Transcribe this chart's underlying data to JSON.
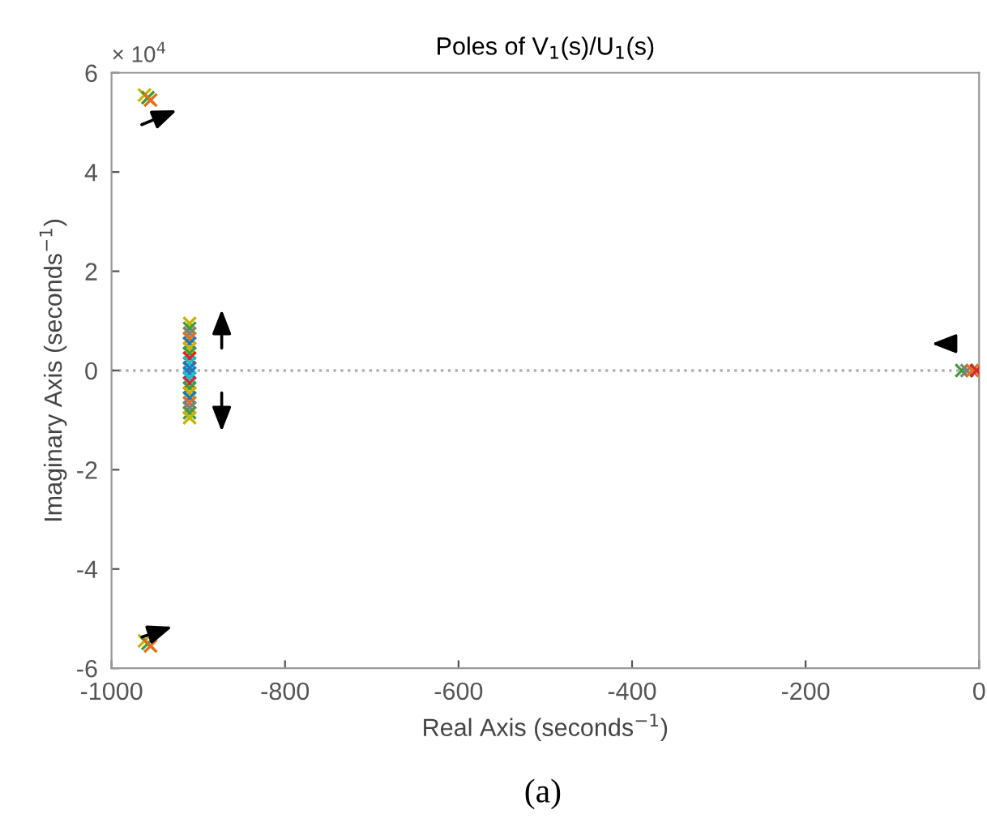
{
  "chart_data": {
    "type": "scatter",
    "title": "Poles of V$_{1}$(s)/U$_{1}$(s)",
    "xlabel": "Real Axis (seconds$^{−1}$)",
    "ylabel": "Imaginary Axis (seconds$^{−1}$)",
    "annotations": [
      "× 10$^{4}$",
      "(a)"
    ],
    "series": [
      {
        "x": [
          -962,
          -958,
          -955,
          -962,
          -958,
          -955,
          -910,
          -910,
          -910,
          -910,
          -910,
          -910,
          -910,
          -910,
          -910,
          -910,
          -910,
          -910,
          -910,
          -910,
          -910,
          -910,
          -910,
          -910,
          -910,
          -910,
          -20,
          -14,
          -8,
          -3
        ],
        "values": [
          5.55,
          5.5,
          5.45,
          -5.45,
          -5.5,
          -5.55,
          0.95,
          0.85,
          0.75,
          0.65,
          0.55,
          0.45,
          0.35,
          0.25,
          0.15,
          0.05,
          -0.05,
          -0.15,
          -0.25,
          -0.35,
          -0.45,
          -0.55,
          -0.65,
          -0.75,
          -0.85,
          -0.95,
          0,
          0,
          0,
          0
        ],
        "colors": [
          "#c8b400",
          "#3c9c3c",
          "#e07020",
          "#c8b400",
          "#3c9c3c",
          "#e07020",
          "#c8b400",
          "#3c9c3c",
          "#7f7f7f",
          "#e07020",
          "#1f77b4",
          "#c8b400",
          "#3c9c3c",
          "#d62728",
          "#17becf",
          "#1f77b4",
          "#1f77b4",
          "#17becf",
          "#d62728",
          "#3c9c3c",
          "#c8b400",
          "#1f77b4",
          "#e07020",
          "#7f7f7f",
          "#3c9c3c",
          "#c8b400",
          "#3c9c3c",
          "#7f7f7f",
          "#e07020",
          "#d62728"
        ]
      }
    ],
    "marker": "cross",
    "xlim": [
      -1000,
      0
    ],
    "xticks": [
      -1000,
      -800,
      -600,
      -400,
      -200,
      0
    ],
    "ylim": [
      -6,
      6
    ],
    "yticks": [
      -6,
      -4,
      -2,
      0,
      2,
      4,
      6
    ],
    "ref_lines": [
      {
        "axis": "y",
        "value": 0,
        "color": "#b0b0b0",
        "line_style": "dotted"
      }
    ],
    "grid": false
  }
}
